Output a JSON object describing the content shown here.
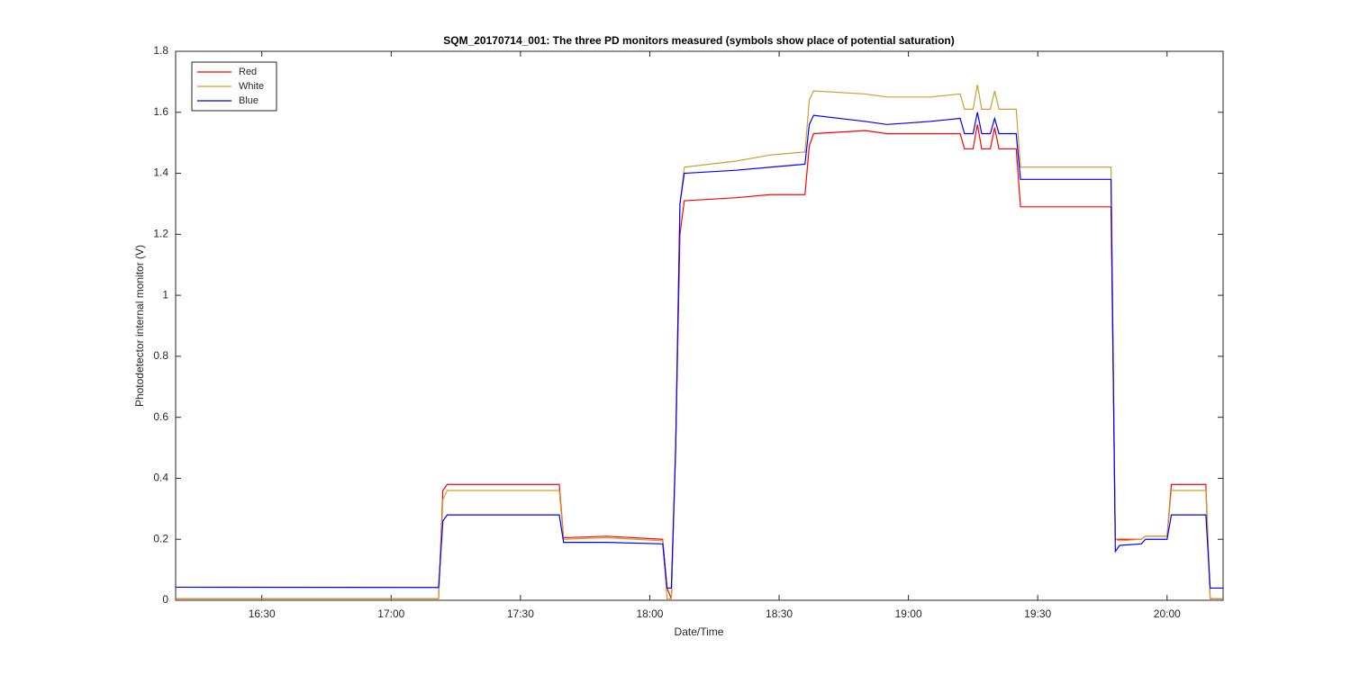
{
  "chart_data": {
    "type": "line",
    "title": "SQM_20170714_001: The three PD monitors measured (symbols show place of potential saturation)",
    "xlabel": "Date/Time",
    "ylabel": "Photodetector internal monitor (V)",
    "x": [
      "16:10",
      "17:11",
      "17:12",
      "17:13",
      "17:39",
      "17:40",
      "17:50",
      "18:03",
      "18:04",
      "18:05",
      "18:06",
      "18:07",
      "18:08",
      "18:20",
      "18:28",
      "18:36",
      "18:37",
      "18:38",
      "18:50",
      "18:55",
      "19:05",
      "19:12",
      "19:13",
      "19:15",
      "19:16",
      "19:17",
      "19:19",
      "19:20",
      "19:21",
      "19:25",
      "19:26",
      "19:47",
      "19:48",
      "19:49",
      "19:54",
      "19:55",
      "20:00",
      "20:01",
      "20:09",
      "20:10",
      "20:13"
    ],
    "series": [
      {
        "name": "Red",
        "color": "#ff0000",
        "values": [
          0.005,
          0.005,
          0.36,
          0.38,
          0.38,
          0.205,
          0.21,
          0.2,
          0.04,
          0.005,
          0.5,
          1.2,
          1.31,
          1.32,
          1.33,
          1.33,
          1.49,
          1.53,
          1.54,
          1.53,
          1.53,
          1.53,
          1.48,
          1.48,
          1.56,
          1.48,
          1.48,
          1.55,
          1.48,
          1.48,
          1.29,
          1.29,
          0.2,
          0.2,
          0.2,
          0.21,
          0.21,
          0.38,
          0.38,
          0.005,
          0.005
        ]
      },
      {
        "name": "White",
        "color": "#c8a032",
        "values": [
          0.005,
          0.005,
          0.33,
          0.36,
          0.36,
          0.2,
          0.205,
          0.195,
          0.005,
          0.005,
          0.5,
          1.3,
          1.42,
          1.44,
          1.46,
          1.47,
          1.64,
          1.67,
          1.66,
          1.65,
          1.65,
          1.66,
          1.61,
          1.61,
          1.69,
          1.61,
          1.61,
          1.67,
          1.61,
          1.61,
          1.42,
          1.42,
          0.2,
          0.195,
          0.2,
          0.21,
          0.21,
          0.36,
          0.36,
          0.005,
          0.005
        ]
      },
      {
        "name": "Blue",
        "color": "#0000ff",
        "values": [
          0.043,
          0.042,
          0.26,
          0.28,
          0.28,
          0.19,
          0.19,
          0.185,
          0.04,
          0.04,
          0.5,
          1.3,
          1.4,
          1.41,
          1.42,
          1.43,
          1.56,
          1.59,
          1.57,
          1.56,
          1.57,
          1.58,
          1.53,
          1.53,
          1.6,
          1.53,
          1.53,
          1.58,
          1.53,
          1.53,
          1.38,
          1.38,
          0.16,
          0.18,
          0.185,
          0.2,
          0.2,
          0.28,
          0.28,
          0.04,
          0.04
        ]
      }
    ],
    "xlim": [
      "16:10",
      "20:13"
    ],
    "xticks": [
      "16:30",
      "17:00",
      "17:30",
      "18:00",
      "18:30",
      "19:00",
      "19:30",
      "20:00"
    ],
    "ylim": [
      0,
      1.8
    ],
    "yticks": [
      0,
      0.2,
      0.4,
      0.6,
      0.8,
      1,
      1.2,
      1.4,
      1.6,
      1.8
    ],
    "legend": "upper-left"
  }
}
